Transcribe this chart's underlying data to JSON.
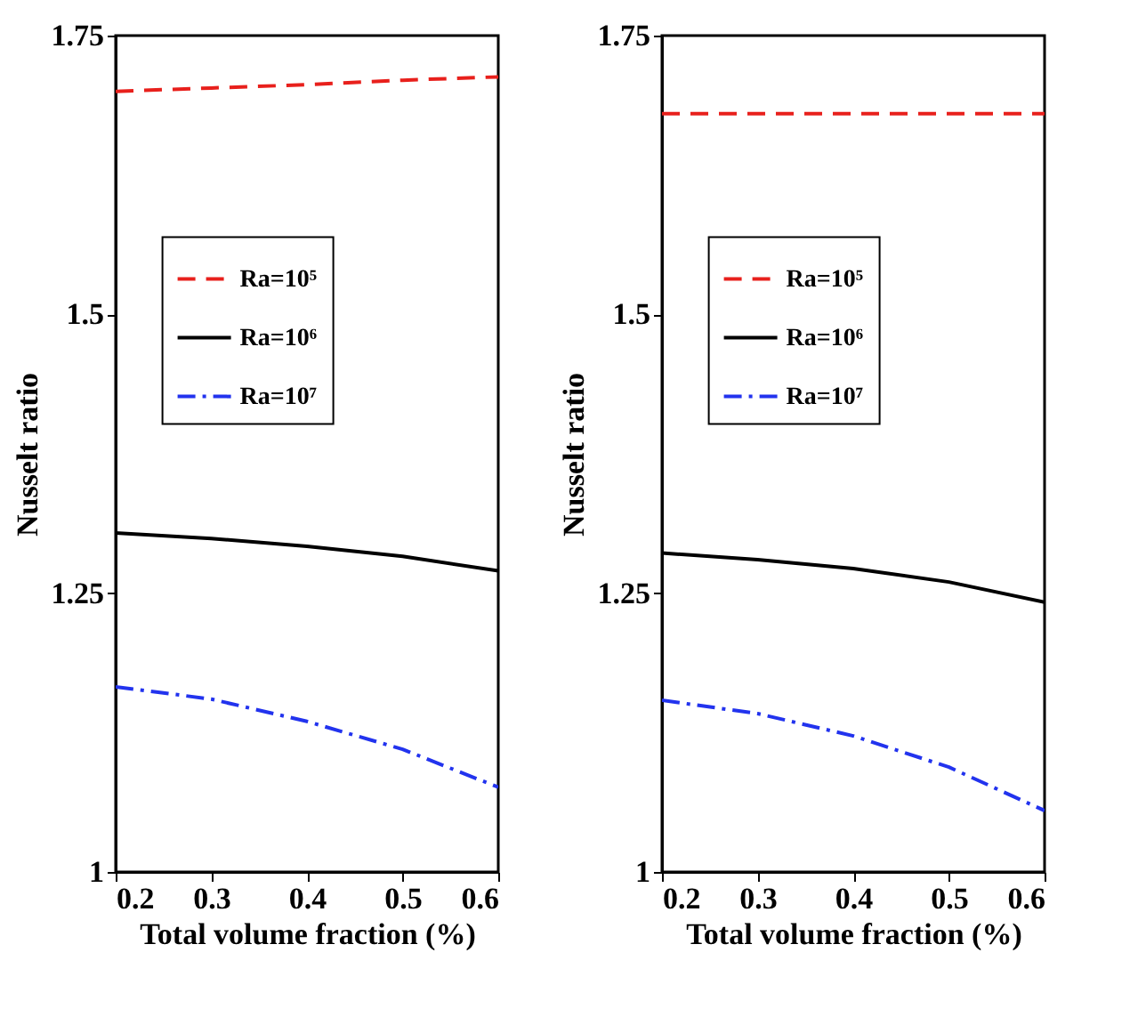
{
  "chart_data": [
    {
      "type": "line",
      "xlabel": "Total volume fraction (%)",
      "ylabel": "Nusselt ratio",
      "x": [
        0.2,
        0.3,
        0.4,
        0.5,
        0.6
      ],
      "xlim": [
        0.2,
        0.6
      ],
      "xticks": [
        0.2,
        0.3,
        0.4,
        0.5,
        0.6
      ],
      "ylim": [
        1,
        1.75
      ],
      "yticks": [
        1,
        1.25,
        1.5,
        1.75
      ],
      "grid": false,
      "legend": "top",
      "series": [
        {
          "name": "Ra=10⁵",
          "color": "#e8201c",
          "line_style": "dashed",
          "values": [
            1.7,
            1.703,
            1.706,
            1.71,
            1.713
          ]
        },
        {
          "name": "Ra=10⁶",
          "color": "#000000",
          "line_style": "solid",
          "values": [
            1.304,
            1.299,
            1.292,
            1.283,
            1.27
          ]
        },
        {
          "name": "Ra=10⁷",
          "color": "#2233ee",
          "line_style": "dashdot",
          "values": [
            1.166,
            1.155,
            1.135,
            1.11,
            1.076
          ]
        }
      ]
    },
    {
      "type": "line",
      "xlabel": "Total volume fraction (%)",
      "ylabel": "Nusselt ratio",
      "x": [
        0.2,
        0.3,
        0.4,
        0.5,
        0.6
      ],
      "xlim": [
        0.2,
        0.6
      ],
      "xticks": [
        0.2,
        0.3,
        0.4,
        0.5,
        0.6
      ],
      "ylim": [
        1,
        1.75
      ],
      "yticks": [
        1,
        1.25,
        1.5,
        1.75
      ],
      "grid": false,
      "legend": "top",
      "series": [
        {
          "name": "Ra=10⁵",
          "color": "#e8201c",
          "line_style": "dashed",
          "values": [
            1.68,
            1.68,
            1.68,
            1.68,
            1.68
          ]
        },
        {
          "name": "Ra=10⁶",
          "color": "#000000",
          "line_style": "solid",
          "values": [
            1.286,
            1.28,
            1.272,
            1.26,
            1.242
          ]
        },
        {
          "name": "Ra=10⁷",
          "color": "#2233ee",
          "line_style": "dashdot",
          "values": [
            1.154,
            1.142,
            1.122,
            1.094,
            1.055
          ]
        }
      ]
    }
  ]
}
